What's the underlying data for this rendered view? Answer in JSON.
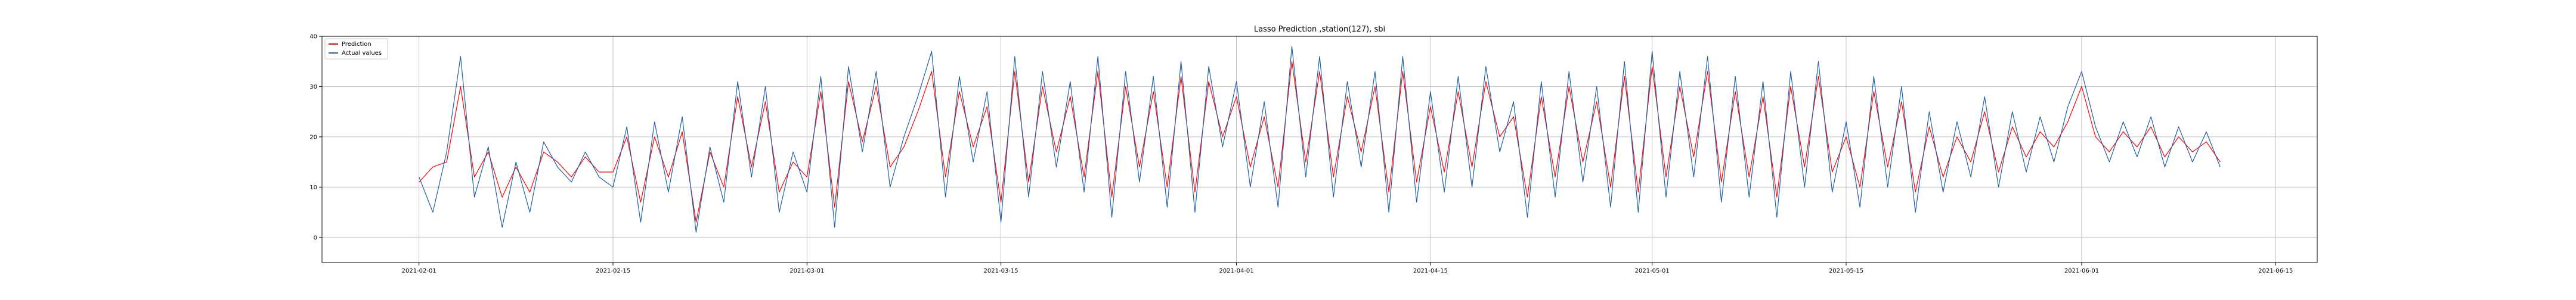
{
  "chart_data": {
    "type": "line",
    "title": "Lasso Prediction ,station(127), sbi",
    "xlabel": "",
    "ylabel": "",
    "x_ticks": [
      "2021-02-01",
      "2021-02-15",
      "2021-03-01",
      "2021-03-15",
      "2021-04-01",
      "2021-04-15",
      "2021-05-01",
      "2021-05-15",
      "2021-06-01",
      "2021-06-15"
    ],
    "y_ticks": [
      0,
      10,
      20,
      30,
      40
    ],
    "xlim": [
      "2021-01-25",
      "2021-06-18"
    ],
    "ylim": [
      -5,
      40
    ],
    "grid": true,
    "legend": {
      "placement": "upper-left"
    },
    "series": [
      {
        "name": "Prediction",
        "color": "#ff0000",
        "x": [
          "2021-02-01",
          "2021-02-02",
          "2021-02-03",
          "2021-02-04",
          "2021-02-05",
          "2021-02-06",
          "2021-02-07",
          "2021-02-08",
          "2021-02-09",
          "2021-02-10",
          "2021-02-11",
          "2021-02-12",
          "2021-02-13",
          "2021-02-14",
          "2021-02-15",
          "2021-02-16",
          "2021-02-17",
          "2021-02-18",
          "2021-02-19",
          "2021-02-20",
          "2021-02-21",
          "2021-02-22",
          "2021-02-23",
          "2021-02-24",
          "2021-02-25",
          "2021-02-26",
          "2021-02-27",
          "2021-02-28",
          "2021-03-01",
          "2021-03-02",
          "2021-03-03",
          "2021-03-04",
          "2021-03-05",
          "2021-03-06",
          "2021-03-07",
          "2021-03-08",
          "2021-03-09",
          "2021-03-10",
          "2021-03-11",
          "2021-03-12",
          "2021-03-13",
          "2021-03-14",
          "2021-03-15",
          "2021-03-16",
          "2021-03-17",
          "2021-03-18",
          "2021-03-19",
          "2021-03-20",
          "2021-03-21",
          "2021-03-22",
          "2021-03-23",
          "2021-03-24",
          "2021-03-25",
          "2021-03-26",
          "2021-03-27",
          "2021-03-28",
          "2021-03-29",
          "2021-03-30",
          "2021-03-31",
          "2021-04-01",
          "2021-04-02",
          "2021-04-03",
          "2021-04-04",
          "2021-04-05",
          "2021-04-06",
          "2021-04-07",
          "2021-04-08",
          "2021-04-09",
          "2021-04-10",
          "2021-04-11",
          "2021-04-12",
          "2021-04-13",
          "2021-04-14",
          "2021-04-15",
          "2021-04-16",
          "2021-04-17",
          "2021-04-18",
          "2021-04-19",
          "2021-04-20",
          "2021-04-21",
          "2021-04-22",
          "2021-04-23",
          "2021-04-24",
          "2021-04-25",
          "2021-04-26",
          "2021-04-27",
          "2021-04-28",
          "2021-04-29",
          "2021-04-30",
          "2021-05-01",
          "2021-05-02",
          "2021-05-03",
          "2021-05-04",
          "2021-05-05",
          "2021-05-06",
          "2021-05-07",
          "2021-05-08",
          "2021-05-09",
          "2021-05-10",
          "2021-05-11",
          "2021-05-12",
          "2021-05-13",
          "2021-05-14",
          "2021-05-15",
          "2021-05-16",
          "2021-05-17",
          "2021-05-18",
          "2021-05-19",
          "2021-05-20",
          "2021-05-21",
          "2021-05-22",
          "2021-05-23",
          "2021-05-24",
          "2021-05-25",
          "2021-05-26",
          "2021-05-27",
          "2021-05-28",
          "2021-05-29",
          "2021-05-30",
          "2021-05-31",
          "2021-06-01",
          "2021-06-02",
          "2021-06-03",
          "2021-06-04",
          "2021-06-05",
          "2021-06-06",
          "2021-06-07",
          "2021-06-08",
          "2021-06-09",
          "2021-06-10",
          "2021-06-11"
        ],
        "values": [
          11,
          14,
          15,
          30,
          12,
          17,
          8,
          14,
          9,
          17,
          15,
          12,
          16,
          13,
          13,
          20,
          7,
          20,
          12,
          21,
          3,
          17,
          10,
          28,
          14,
          27,
          9,
          15,
          12,
          29,
          6,
          31,
          19,
          30,
          14,
          18,
          25,
          33,
          12,
          29,
          18,
          26,
          7,
          33,
          11,
          30,
          17,
          28,
          12,
          33,
          8,
          30,
          14,
          29,
          10,
          32,
          9,
          31,
          20,
          28,
          14,
          24,
          10,
          35,
          15,
          33,
          12,
          28,
          17,
          30,
          9,
          33,
          11,
          26,
          13,
          29,
          14,
          31,
          20,
          24,
          8,
          28,
          12,
          30,
          15,
          27,
          10,
          32,
          9,
          34,
          12,
          30,
          16,
          33,
          11,
          29,
          12,
          28,
          8,
          30,
          14,
          32,
          13,
          20,
          10,
          29,
          14,
          27,
          9,
          22,
          12,
          20,
          15,
          25,
          13,
          22,
          16,
          21,
          18,
          23,
          30,
          20,
          17,
          21,
          18,
          22,
          16,
          20,
          17,
          19,
          15
        ]
      },
      {
        "name": "Actual values",
        "color": "#1f5fa8",
        "x": [
          "2021-02-01",
          "2021-02-02",
          "2021-02-03",
          "2021-02-04",
          "2021-02-05",
          "2021-02-06",
          "2021-02-07",
          "2021-02-08",
          "2021-02-09",
          "2021-02-10",
          "2021-02-11",
          "2021-02-12",
          "2021-02-13",
          "2021-02-14",
          "2021-02-15",
          "2021-02-16",
          "2021-02-17",
          "2021-02-18",
          "2021-02-19",
          "2021-02-20",
          "2021-02-21",
          "2021-02-22",
          "2021-02-23",
          "2021-02-24",
          "2021-02-25",
          "2021-02-26",
          "2021-02-27",
          "2021-02-28",
          "2021-03-01",
          "2021-03-02",
          "2021-03-03",
          "2021-03-04",
          "2021-03-05",
          "2021-03-06",
          "2021-03-07",
          "2021-03-08",
          "2021-03-09",
          "2021-03-10",
          "2021-03-11",
          "2021-03-12",
          "2021-03-13",
          "2021-03-14",
          "2021-03-15",
          "2021-03-16",
          "2021-03-17",
          "2021-03-18",
          "2021-03-19",
          "2021-03-20",
          "2021-03-21",
          "2021-03-22",
          "2021-03-23",
          "2021-03-24",
          "2021-03-25",
          "2021-03-26",
          "2021-03-27",
          "2021-03-28",
          "2021-03-29",
          "2021-03-30",
          "2021-03-31",
          "2021-04-01",
          "2021-04-02",
          "2021-04-03",
          "2021-04-04",
          "2021-04-05",
          "2021-04-06",
          "2021-04-07",
          "2021-04-08",
          "2021-04-09",
          "2021-04-10",
          "2021-04-11",
          "2021-04-12",
          "2021-04-13",
          "2021-04-14",
          "2021-04-15",
          "2021-04-16",
          "2021-04-17",
          "2021-04-18",
          "2021-04-19",
          "2021-04-20",
          "2021-04-21",
          "2021-04-22",
          "2021-04-23",
          "2021-04-24",
          "2021-04-25",
          "2021-04-26",
          "2021-04-27",
          "2021-04-28",
          "2021-04-29",
          "2021-04-30",
          "2021-05-01",
          "2021-05-02",
          "2021-05-03",
          "2021-05-04",
          "2021-05-05",
          "2021-05-06",
          "2021-05-07",
          "2021-05-08",
          "2021-05-09",
          "2021-05-10",
          "2021-05-11",
          "2021-05-12",
          "2021-05-13",
          "2021-05-14",
          "2021-05-15",
          "2021-05-16",
          "2021-05-17",
          "2021-05-18",
          "2021-05-19",
          "2021-05-20",
          "2021-05-21",
          "2021-05-22",
          "2021-05-23",
          "2021-05-24",
          "2021-05-25",
          "2021-05-26",
          "2021-05-27",
          "2021-05-28",
          "2021-05-29",
          "2021-05-30",
          "2021-05-31",
          "2021-06-01",
          "2021-06-02",
          "2021-06-03",
          "2021-06-04",
          "2021-06-05",
          "2021-06-06",
          "2021-06-07",
          "2021-06-08",
          "2021-06-09",
          "2021-06-10",
          "2021-06-11"
        ],
        "values": [
          12,
          5,
          17,
          36,
          8,
          18,
          2,
          15,
          5,
          19,
          14,
          11,
          17,
          12,
          10,
          22,
          3,
          23,
          9,
          24,
          1,
          18,
          7,
          31,
          12,
          30,
          5,
          17,
          9,
          32,
          2,
          34,
          17,
          33,
          10,
          20,
          28,
          37,
          8,
          32,
          15,
          29,
          3,
          36,
          8,
          33,
          14,
          31,
          9,
          36,
          4,
          33,
          11,
          32,
          6,
          35,
          5,
          34,
          18,
          31,
          10,
          27,
          6,
          38,
          12,
          36,
          8,
          31,
          14,
          33,
          5,
          36,
          7,
          29,
          9,
          32,
          10,
          34,
          17,
          27,
          4,
          31,
          8,
          33,
          11,
          30,
          6,
          35,
          5,
          37,
          8,
          33,
          12,
          36,
          7,
          32,
          8,
          31,
          4,
          33,
          10,
          35,
          9,
          23,
          6,
          32,
          10,
          30,
          5,
          25,
          9,
          23,
          12,
          28,
          10,
          25,
          13,
          24,
          15,
          26,
          33,
          22,
          15,
          23,
          16,
          24,
          14,
          22,
          15,
          21,
          14
        ]
      }
    ]
  }
}
